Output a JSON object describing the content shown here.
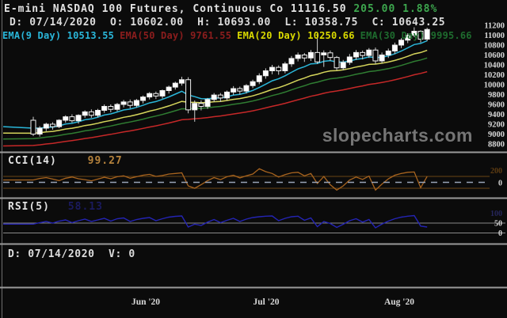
{
  "header": {
    "title": "E-mini NASDAQ 100 Futures, Continuous Co",
    "last_price": "11116.50",
    "change": "205.00",
    "change_pct": "1.88%",
    "crosshair": {
      "d_label": "D:",
      "date": "07/14/2020",
      "o_label": "O:",
      "open": "10602.00",
      "h_label": "H:",
      "high": "10693.00",
      "l_label": "L:",
      "low": "10358.75",
      "c_label": "C:",
      "close": "10643.25"
    }
  },
  "emas": [
    {
      "label": "EMA(9 Day)",
      "value": "10513.55",
      "period": 9,
      "color": "#2ab6d9",
      "line_color": "#2ab6d9"
    },
    {
      "label": "EMA(50 Day)",
      "value": "9761.55",
      "period": 50,
      "color": "#8b1d1d",
      "line_color": "#c62828"
    },
    {
      "label": "EMA(20 Day)",
      "value": "10250.66",
      "period": 20,
      "color": "#d9d900",
      "line_color": "#d6d65c"
    },
    {
      "label": "EMA(30 Day)",
      "value": "9995.66",
      "period": 30,
      "color": "#1e6b2e",
      "line_color": "#2f7d32"
    }
  ],
  "indicators": {
    "cci": {
      "label": "CCI(14)",
      "value": "99.27"
    },
    "rsi": {
      "label": "RSI(5)",
      "value": "58.13"
    }
  },
  "footer": {
    "d_label": "D:",
    "date": "07/14/2020",
    "v_label": "V:",
    "volume": "0"
  },
  "watermark": {
    "text": "slopecharts.com"
  },
  "colors": {
    "background": "#0b0b0b",
    "text": "#e2e2e2",
    "gain_green": "#3da74e",
    "separator": "#9a9a9a",
    "candle_up": "#ffffff",
    "candle_down": "#050505",
    "candle_outline": "#f0f0f0",
    "wick": "#cccccc",
    "cci_line": "#a8641f",
    "cci_level_lines": "#6b4414",
    "cci_zero_dash": "#9aa4b8",
    "cci_axis_200": "#5f3d12",
    "rsi_line": "#2424b4",
    "rsi_level_lines": "#8a8a8a",
    "rsi_axis_100": "#26265c",
    "axis_text": "#d8d8d8",
    "watermark": "#757575"
  },
  "chart_data": {
    "type": "candlestick",
    "symbol": "E-mini NASDAQ 100 Futures, Continuous Co",
    "ylim": [
      8800,
      11200
    ],
    "y_ticks": [
      11200,
      11000,
      10800,
      10600,
      10400,
      10200,
      10000,
      9800,
      9600,
      9400,
      9200,
      9000,
      8800
    ],
    "x_labels": [
      "Jun '20",
      "Jul '20",
      "Aug '20"
    ],
    "grid": false,
    "legend_position": "top",
    "candles": [
      [
        9280,
        9350,
        8960,
        9000
      ],
      [
        9000,
        9160,
        8950,
        9120
      ],
      [
        9120,
        9230,
        9060,
        9200
      ],
      [
        9200,
        9240,
        9090,
        9150
      ],
      [
        9150,
        9300,
        9120,
        9280
      ],
      [
        9280,
        9380,
        9230,
        9350
      ],
      [
        9350,
        9400,
        9230,
        9270
      ],
      [
        9270,
        9400,
        9210,
        9380
      ],
      [
        9380,
        9480,
        9330,
        9450
      ],
      [
        9450,
        9500,
        9330,
        9380
      ],
      [
        9380,
        9510,
        9340,
        9480
      ],
      [
        9480,
        9600,
        9430,
        9560
      ],
      [
        9560,
        9600,
        9440,
        9500
      ],
      [
        9500,
        9630,
        9460,
        9600
      ],
      [
        9600,
        9690,
        9540,
        9650
      ],
      [
        9650,
        9700,
        9520,
        9580
      ],
      [
        9580,
        9710,
        9540,
        9680
      ],
      [
        9680,
        9780,
        9620,
        9750
      ],
      [
        9750,
        9850,
        9700,
        9820
      ],
      [
        9820,
        9860,
        9710,
        9770
      ],
      [
        9770,
        9900,
        9720,
        9880
      ],
      [
        9880,
        9980,
        9820,
        9950
      ],
      [
        9950,
        10060,
        9900,
        10030
      ],
      [
        10030,
        10160,
        9980,
        10100
      ],
      [
        10100,
        10150,
        9420,
        9490
      ],
      [
        9490,
        9680,
        9250,
        9620
      ],
      [
        9620,
        9680,
        9480,
        9560
      ],
      [
        9560,
        9730,
        9510,
        9700
      ],
      [
        9700,
        9830,
        9650,
        9790
      ],
      [
        9790,
        9830,
        9650,
        9730
      ],
      [
        9730,
        9880,
        9680,
        9850
      ],
      [
        9850,
        9970,
        9790,
        9920
      ],
      [
        9920,
        9960,
        9800,
        9870
      ],
      [
        9870,
        10010,
        9820,
        9980
      ],
      [
        9980,
        10100,
        9930,
        10060
      ],
      [
        10060,
        10230,
        10010,
        10180
      ],
      [
        10180,
        10330,
        10120,
        10280
      ],
      [
        10280,
        10400,
        10210,
        10350
      ],
      [
        10350,
        10390,
        10200,
        10280
      ],
      [
        10280,
        10460,
        10230,
        10420
      ],
      [
        10420,
        10580,
        10360,
        10530
      ],
      [
        10530,
        10650,
        10470,
        10600
      ],
      [
        10600,
        10640,
        10460,
        10540
      ],
      [
        10540,
        10700,
        10480,
        10650
      ],
      [
        10650,
        11020,
        10420,
        10460
      ],
      [
        10602,
        10693,
        10359,
        10643
      ],
      [
        10643,
        10690,
        10480,
        10550
      ],
      [
        10550,
        10580,
        10290,
        10340
      ],
      [
        10340,
        10500,
        10290,
        10450
      ],
      [
        10450,
        10620,
        10400,
        10560
      ],
      [
        10560,
        10700,
        10500,
        10650
      ],
      [
        10650,
        10690,
        10510,
        10590
      ],
      [
        10590,
        10740,
        10540,
        10700
      ],
      [
        10700,
        10750,
        10420,
        10480
      ],
      [
        10480,
        10650,
        10430,
        10600
      ],
      [
        10600,
        10730,
        10540,
        10680
      ],
      [
        10680,
        10850,
        10620,
        10800
      ],
      [
        10800,
        10940,
        10740,
        10900
      ],
      [
        10900,
        11040,
        10840,
        11000
      ],
      [
        11000,
        11160,
        10960,
        11080
      ],
      [
        11080,
        11100,
        10850,
        10920
      ],
      [
        10920,
        11150,
        10880,
        11116
      ]
    ],
    "indicator_series": {
      "cci": [
        40,
        65,
        80,
        55,
        30,
        70,
        90,
        60,
        45,
        25,
        55,
        85,
        60,
        95,
        110,
        70,
        95,
        120,
        135,
        100,
        115,
        140,
        150,
        160,
        -60,
        -100,
        -40,
        30,
        80,
        45,
        95,
        120,
        75,
        110,
        140,
        230,
        180,
        150,
        90,
        130,
        160,
        170,
        110,
        150,
        -20,
        99,
        -40,
        -130,
        -60,
        40,
        90,
        50,
        105,
        -130,
        -30,
        60,
        120,
        150,
        170,
        175,
        -90,
        99
      ],
      "rsi": [
        45,
        52,
        58,
        50,
        60,
        66,
        52,
        62,
        70,
        58,
        66,
        74,
        60,
        72,
        76,
        58,
        68,
        74,
        78,
        62,
        72,
        80,
        84,
        86,
        30,
        45,
        38,
        55,
        68,
        52,
        64,
        74,
        58,
        70,
        78,
        82,
        85,
        86,
        62,
        74,
        82,
        85,
        64,
        76,
        32,
        58,
        48,
        28,
        44,
        62,
        72,
        55,
        68,
        26,
        45,
        60,
        72,
        80,
        85,
        88,
        35,
        30
      ]
    },
    "cci_panel": {
      "upper_level": 100,
      "zero_level": 0,
      "lower_level": -100,
      "axis_labels": [
        "200",
        "0"
      ]
    },
    "rsi_panel": {
      "levels": [
        50,
        0
      ],
      "axis_labels": [
        "100",
        "50",
        "0"
      ]
    }
  }
}
